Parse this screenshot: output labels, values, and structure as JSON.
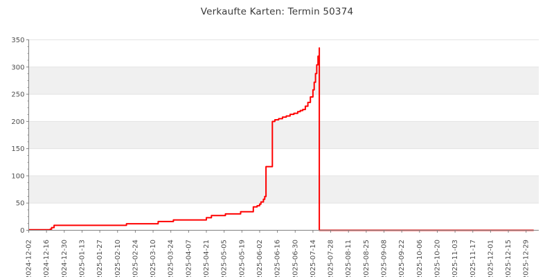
{
  "page": {
    "background": "#ffffff"
  },
  "chart_data": {
    "type": "line",
    "title": "Verkaufte Karten: Termin 50374",
    "step_mode": "after",
    "line_color": "#fe0000",
    "line_width": 2,
    "xlabel": "",
    "ylabel": "",
    "ylim": [
      0,
      350
    ],
    "y_ticks": [
      0,
      50,
      100,
      150,
      200,
      250,
      300,
      350
    ],
    "y_minor_interval": 12.5,
    "x_tick_interval_days": 14,
    "x_tick_labels": [
      "2024-12-02",
      "2024-12-16",
      "2024-12-30",
      "2025-01-13",
      "2025-01-27",
      "2025-02-10",
      "2025-02-24",
      "2025-03-10",
      "2025-03-24",
      "2025-04-07",
      "2025-04-21",
      "2025-05-05",
      "2025-05-19",
      "2025-06-02",
      "2025-06-16",
      "2025-06-30",
      "2025-07-14",
      "2025-07-28",
      "2025-08-11",
      "2025-08-25",
      "2025-09-08",
      "2025-09-22",
      "2025-10-06",
      "2025-10-20",
      "2025-11-03",
      "2025-11-17",
      "2025-12-01",
      "2025-12-15",
      "2025-12-29"
    ],
    "x_range": [
      "2024-12-02",
      "2026-01-04"
    ],
    "shaded_bands": [
      [
        50,
        100
      ],
      [
        150,
        200
      ],
      [
        250,
        300
      ]
    ],
    "colors": {
      "band": "#f0f0f0",
      "grid": "#e3e3e3",
      "spine": "#808080",
      "tick_label": "#4d4d4d",
      "title": "#3a3a3a"
    },
    "legend": "none",
    "grid": "horizontal-only",
    "points": [
      {
        "date": "2024-12-02",
        "value": 1
      },
      {
        "date": "2024-12-19",
        "value": 2
      },
      {
        "date": "2024-12-20",
        "value": 5
      },
      {
        "date": "2024-12-22",
        "value": 9
      },
      {
        "date": "2025-02-17",
        "value": 12
      },
      {
        "date": "2025-03-14",
        "value": 16
      },
      {
        "date": "2025-03-26",
        "value": 19
      },
      {
        "date": "2025-04-21",
        "value": 23
      },
      {
        "date": "2025-04-25",
        "value": 27
      },
      {
        "date": "2025-05-06",
        "value": 30
      },
      {
        "date": "2025-05-18",
        "value": 34
      },
      {
        "date": "2025-05-28",
        "value": 43
      },
      {
        "date": "2025-05-31",
        "value": 45
      },
      {
        "date": "2025-06-02",
        "value": 48
      },
      {
        "date": "2025-06-03",
        "value": 52
      },
      {
        "date": "2025-06-05",
        "value": 57
      },
      {
        "date": "2025-06-06",
        "value": 62
      },
      {
        "date": "2025-06-07",
        "value": 117
      },
      {
        "date": "2025-06-12",
        "value": 200
      },
      {
        "date": "2025-06-14",
        "value": 203
      },
      {
        "date": "2025-06-17",
        "value": 205
      },
      {
        "date": "2025-06-20",
        "value": 208
      },
      {
        "date": "2025-06-23",
        "value": 210
      },
      {
        "date": "2025-06-26",
        "value": 213
      },
      {
        "date": "2025-06-29",
        "value": 215
      },
      {
        "date": "2025-07-02",
        "value": 218
      },
      {
        "date": "2025-07-04",
        "value": 220
      },
      {
        "date": "2025-07-06",
        "value": 222
      },
      {
        "date": "2025-07-08",
        "value": 228
      },
      {
        "date": "2025-07-10",
        "value": 235
      },
      {
        "date": "2025-07-12",
        "value": 245
      },
      {
        "date": "2025-07-14",
        "value": 258
      },
      {
        "date": "2025-07-15",
        "value": 272
      },
      {
        "date": "2025-07-16",
        "value": 288
      },
      {
        "date": "2025-07-17",
        "value": 304
      },
      {
        "date": "2025-07-18",
        "value": 320
      },
      {
        "date": "2025-07-19",
        "value": 335
      },
      {
        "date": "2025-07-19",
        "value": 0
      },
      {
        "date": "2026-01-04",
        "value": 0
      }
    ]
  }
}
